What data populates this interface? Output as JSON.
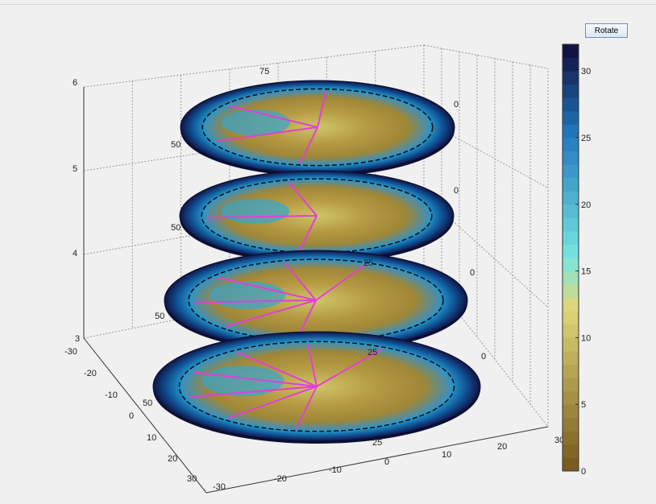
{
  "window": {
    "accent": "#f0f0f0"
  },
  "toolbar": {
    "rotate_label": "Rotate"
  },
  "chart_data": {
    "type": "polar-slice-stack",
    "z_ticks": [
      "3",
      "4",
      "5",
      "6"
    ],
    "x_ticks": [
      "-30",
      "-20",
      "-10",
      "0",
      "10",
      "20",
      "30"
    ],
    "y_ticks": [
      "-30",
      "-20",
      "-10",
      "0",
      "10",
      "20",
      "30"
    ],
    "zlim": [
      3,
      6
    ],
    "xlim": [
      -30,
      30
    ],
    "ylim": [
      -30,
      30
    ],
    "slices": [
      {
        "z": 6,
        "labels": [
          "75",
          "50",
          "0"
        ],
        "spokes": 4
      },
      {
        "z": 5,
        "labels": [
          "50",
          "0"
        ],
        "spokes": 3
      },
      {
        "z": 4,
        "labels": [
          "25",
          "50",
          "0"
        ],
        "spokes": 6
      },
      {
        "z": 3,
        "labels": [
          "25",
          "50",
          "25",
          "0"
        ],
        "spokes": 7
      }
    ],
    "colorbar": {
      "ticks": [
        "0",
        "5",
        "10",
        "15",
        "20",
        "25",
        "30"
      ],
      "range": [
        0,
        32
      ],
      "low_color": "#7a5c1e",
      "mid_color": "#e0d678",
      "high_color": "#111344"
    },
    "grid": true,
    "spoke_color": "#e23fd6"
  }
}
